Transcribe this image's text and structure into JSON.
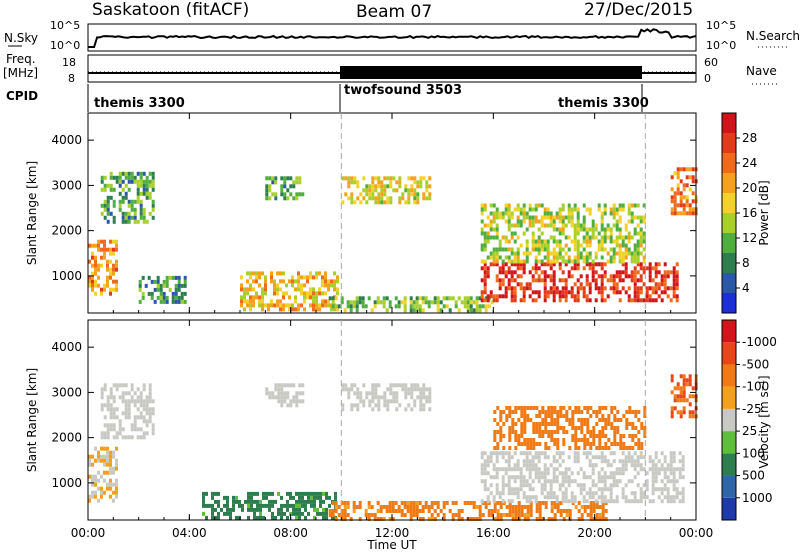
{
  "header": {
    "station": "Saskatoon (fitACF)",
    "beam": "Beam 07",
    "date": "27/Dec/2015"
  },
  "nsky_panel": {
    "left_label": "N.Sky",
    "right_label": "N.Search",
    "left_ticks": [
      "10^5",
      "10^0"
    ],
    "right_ticks": [
      "10^5",
      "10^0"
    ]
  },
  "freq_panel": {
    "left_label_line1": "Freq.",
    "left_label_line2": "[MHz]",
    "right_label": "Nave",
    "left_ticks": [
      "18",
      "8"
    ],
    "right_ticks": [
      "60",
      "0"
    ]
  },
  "cpid": {
    "label": "CPID",
    "segments": [
      {
        "name": "themis 3300",
        "start_h": 0,
        "end_h": 10
      },
      {
        "name": "twofsound 3503",
        "start_h": 10,
        "end_h": 22
      },
      {
        "name": "themis 3300",
        "start_h": 22,
        "end_h": 24
      }
    ]
  },
  "axes": {
    "xlabel": "Time UT",
    "ylabel": "Slant Range [km]",
    "x_tick_labels": [
      "00:00",
      "04:00",
      "08:00",
      "12:00",
      "16:00",
      "20:00",
      "00:00"
    ],
    "y_tick_labels": [
      "1000",
      "2000",
      "3000",
      "4000"
    ]
  },
  "power_colorbar": {
    "label": "Power [dB]",
    "ticks": [
      "4",
      "8",
      "12",
      "16",
      "20",
      "24",
      "28"
    ],
    "colors": [
      "#1c2fd6",
      "#2b57a8",
      "#2e7d4f",
      "#4fae3e",
      "#a9cf2b",
      "#f2d22a",
      "#f4a11e",
      "#ef6a1d",
      "#e33a1a",
      "#d1141b"
    ]
  },
  "velocity_colorbar": {
    "label": "Velocity [m s⁻¹]",
    "ticks": [
      "1000",
      "500",
      "100",
      "25",
      "-25",
      "-100",
      "-500",
      "-1000"
    ],
    "colors": [
      "#1f3aa8",
      "#2f66a9",
      "#2e7d4f",
      "#5fbf3a",
      "#c9c9c4",
      "#f2a01e",
      "#f07a16",
      "#e8461a",
      "#d4141a"
    ]
  },
  "chart_data": {
    "type": "heatmap",
    "title": "Saskatoon (fitACF) Beam 07 27/Dec/2015",
    "xlabel": "Time UT",
    "ylabel": "Slant Range [km]",
    "xlim_hours": [
      0,
      24
    ],
    "ylim_km": [
      180,
      4600
    ],
    "vertical_markers_hours": [
      10,
      22
    ],
    "panels": [
      {
        "name": "Power [dB]",
        "clim": [
          0,
          30
        ],
        "regions": [
          {
            "t0": 0.0,
            "t1": 1.1,
            "r0": 650,
            "r1": 1800,
            "value": 20
          },
          {
            "t0": 0.5,
            "t1": 2.6,
            "r0": 2200,
            "r1": 3300,
            "value": 10
          },
          {
            "t0": 2.0,
            "t1": 3.8,
            "r0": 400,
            "r1": 1000,
            "value": 8
          },
          {
            "t0": 6.0,
            "t1": 9.8,
            "r0": 250,
            "r1": 1100,
            "value": 18
          },
          {
            "t0": 7.0,
            "t1": 8.5,
            "r0": 2700,
            "r1": 3200,
            "value": 10
          },
          {
            "t0": 10.0,
            "t1": 13.5,
            "r0": 2600,
            "r1": 3200,
            "value": 16
          },
          {
            "t0": 9.5,
            "t1": 16.0,
            "r0": 200,
            "r1": 550,
            "value": 12
          },
          {
            "t0": 15.5,
            "t1": 23.2,
            "r0": 500,
            "r1": 1300,
            "value": 26
          },
          {
            "t0": 15.5,
            "t1": 22.0,
            "r0": 1300,
            "r1": 2600,
            "value": 14
          },
          {
            "t0": 23.0,
            "t1": 24.0,
            "r0": 2400,
            "r1": 3400,
            "value": 22
          }
        ]
      },
      {
        "name": "Velocity [m s-1]",
        "clim": [
          -1000,
          1000
        ],
        "regions": [
          {
            "t0": 0.0,
            "t1": 1.1,
            "r0": 650,
            "r1": 1800,
            "value": -25
          },
          {
            "t0": 0.5,
            "t1": 2.6,
            "r0": 2000,
            "r1": 3200,
            "value": 0
          },
          {
            "t0": 4.5,
            "t1": 9.8,
            "r0": 200,
            "r1": 800,
            "value": 100
          },
          {
            "t0": 7.0,
            "t1": 8.5,
            "r0": 2700,
            "r1": 3200,
            "value": 0
          },
          {
            "t0": 10.0,
            "t1": 13.5,
            "r0": 2600,
            "r1": 3200,
            "value": 0
          },
          {
            "t0": 9.5,
            "t1": 20.5,
            "r0": 200,
            "r1": 600,
            "value": -100
          },
          {
            "t0": 15.5,
            "t1": 23.5,
            "r0": 600,
            "r1": 1700,
            "value": 0
          },
          {
            "t0": 16.0,
            "t1": 22.0,
            "r0": 1800,
            "r1": 2700,
            "value": -150
          },
          {
            "t0": 23.0,
            "t1": 24.0,
            "r0": 2500,
            "r1": 3400,
            "value": -300
          }
        ]
      }
    ]
  }
}
